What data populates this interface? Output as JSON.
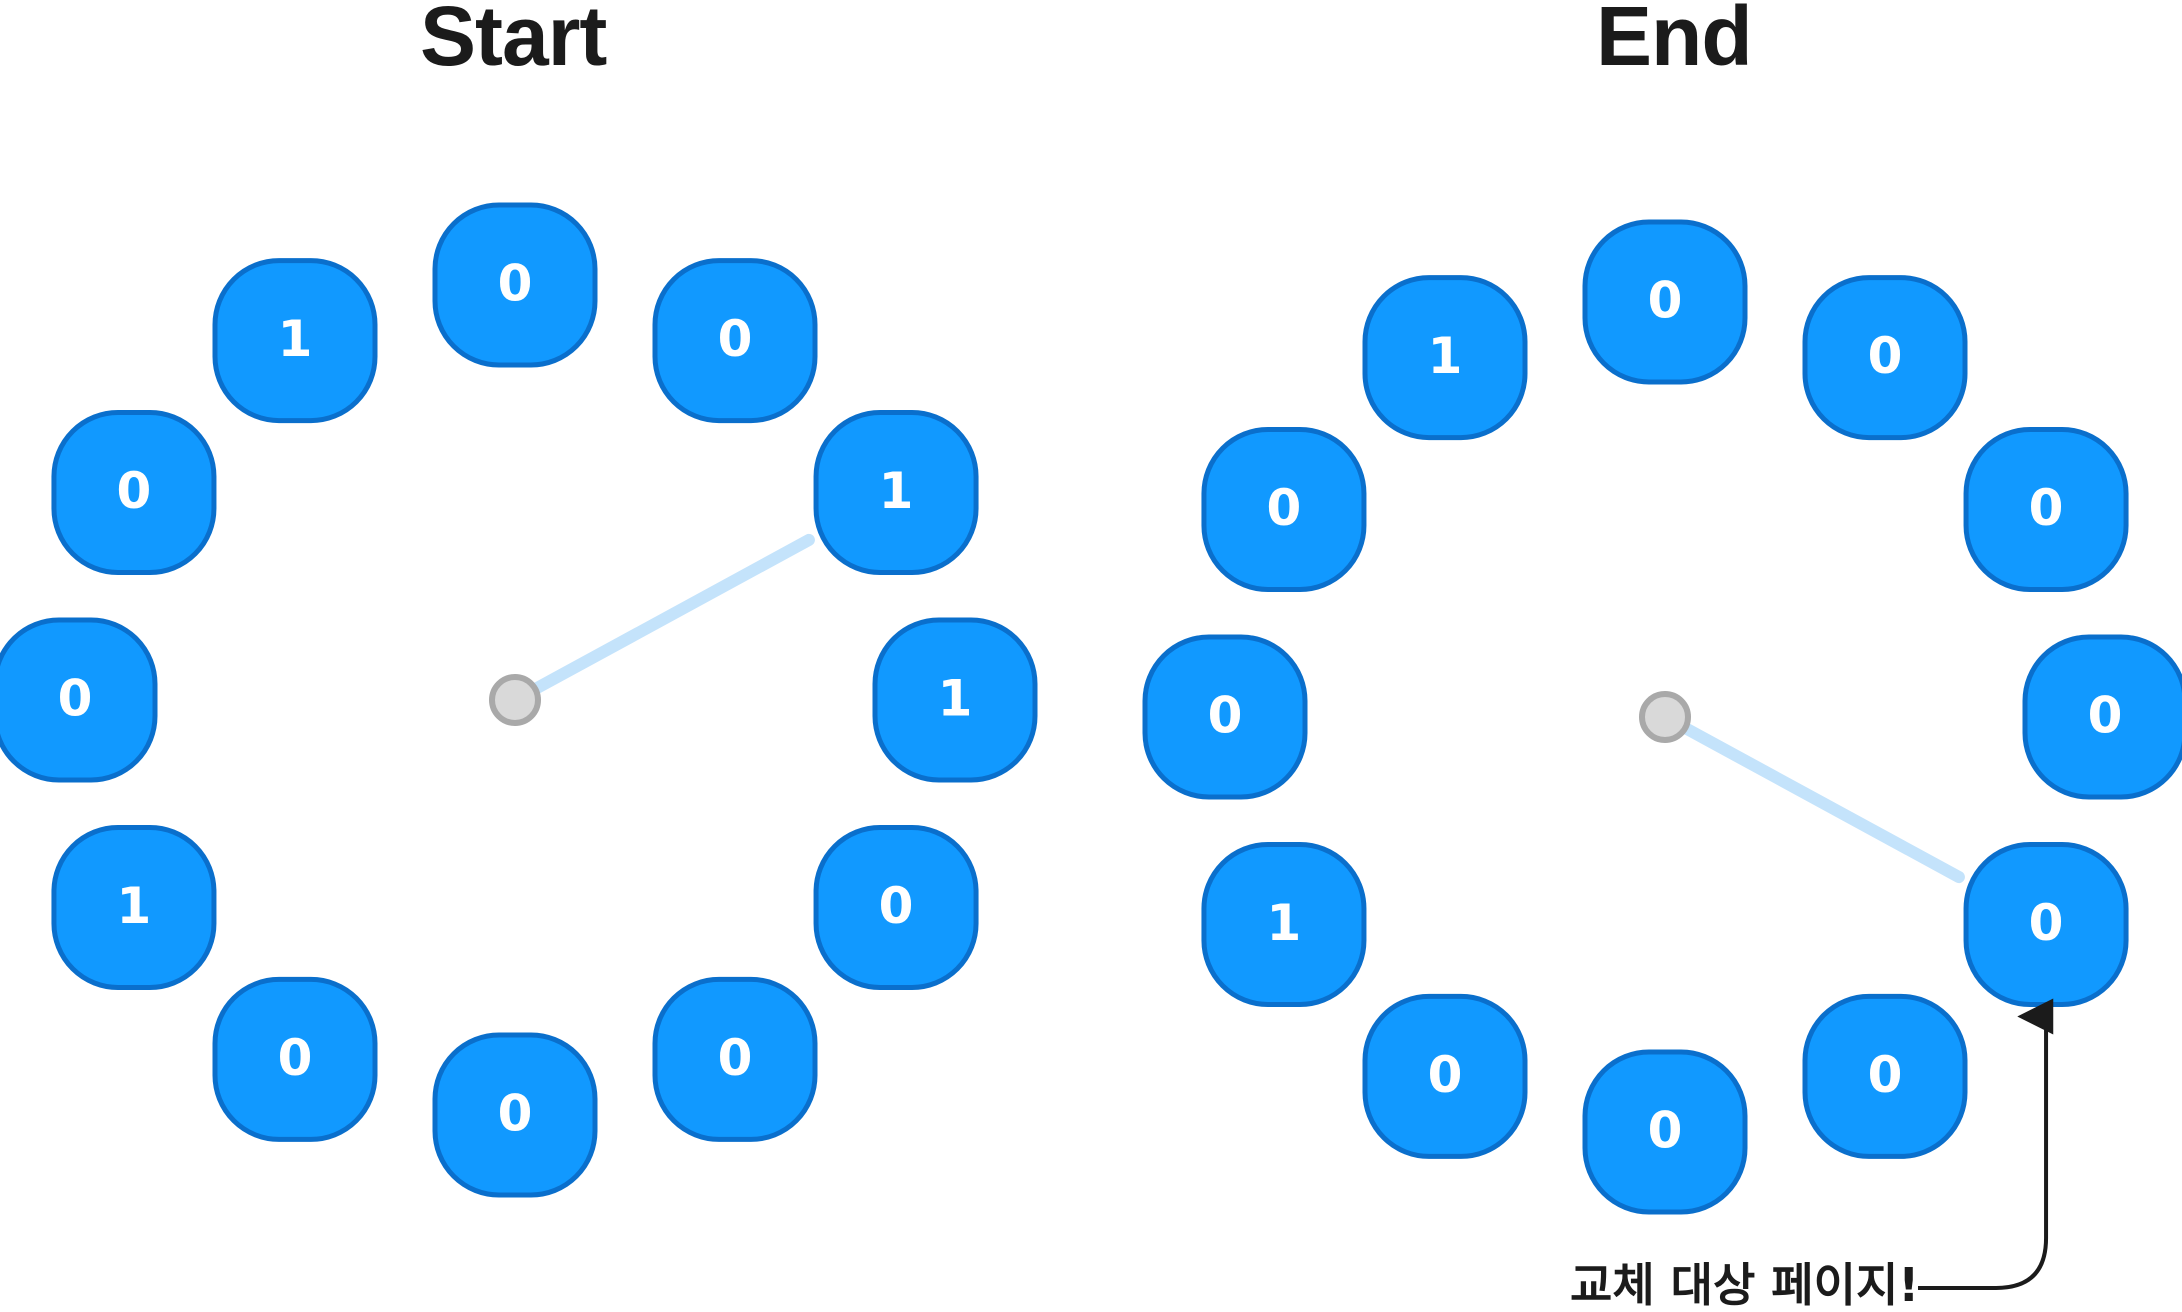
{
  "titles": {
    "start": "Start",
    "end": "End"
  },
  "annotation": "교체 대상 페이지!",
  "colors": {
    "node_fill": "#1199FF",
    "node_stroke": "#0A6FCC",
    "hand": "#C4E3FB",
    "pivot_fill": "#D9D9D9",
    "pivot_stroke": "#A9A9A9",
    "text": "#1B1B1B"
  },
  "clocks": [
    {
      "name": "start",
      "bits": [
        "0",
        "0",
        "1",
        "1",
        "0",
        "0",
        "0",
        "0",
        "1",
        "0",
        "0",
        "1"
      ],
      "hand_position": 2
    },
    {
      "name": "end",
      "bits": [
        "0",
        "0",
        "0",
        "0",
        "0",
        "0",
        "0",
        "0",
        "1",
        "0",
        "0",
        "1"
      ],
      "hand_position": 4,
      "replacement_target": 4
    }
  ]
}
